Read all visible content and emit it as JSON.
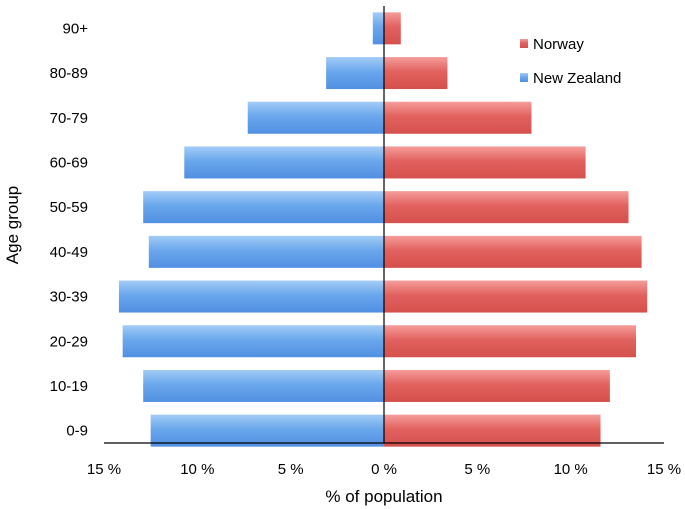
{
  "chart_data": {
    "type": "bar",
    "orientation": "horizontal",
    "layout": "population-pyramid",
    "title": "",
    "xlabel": "% of population",
    "ylabel": "Age group",
    "categories": [
      "90+",
      "80-89",
      "70-79",
      "60-69",
      "50-59",
      "40-49",
      "30-39",
      "20-29",
      "10-19",
      "0-9"
    ],
    "x_ticks": [
      "15 %",
      "10 %",
      "5 %",
      "0 %",
      "5 %",
      "10 %",
      "15 %"
    ],
    "xlim": [
      -15,
      15
    ],
    "grid": false,
    "legend_position": "top-right",
    "series": [
      {
        "name": "Norway",
        "side": "right",
        "color": "#e0605f",
        "values": [
          0.9,
          3.4,
          7.9,
          10.8,
          13.1,
          13.8,
          14.1,
          13.5,
          12.1,
          11.6
        ]
      },
      {
        "name": "New Zealand",
        "side": "left",
        "color": "#5f9ee8",
        "values": [
          0.6,
          3.1,
          7.3,
          10.7,
          12.9,
          12.6,
          14.2,
          14.0,
          12.9,
          12.5
        ]
      }
    ]
  }
}
